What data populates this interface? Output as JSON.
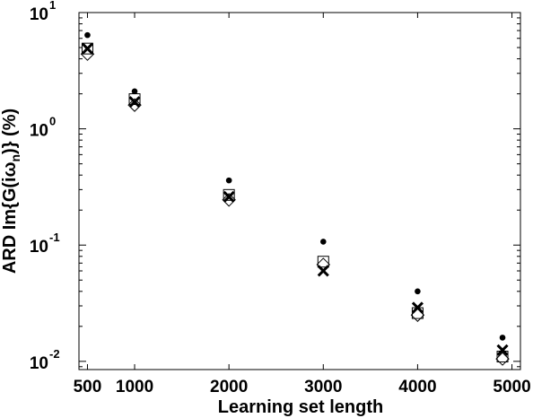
{
  "chart_data": {
    "type": "scatter",
    "xlabel": "Learning set length",
    "ylabel": {
      "prefix": "ARD Im{G(iω",
      "subscript": "n",
      "suffix": ")} (%)"
    },
    "y_scale": "log",
    "xlim": [
      410,
      5090
    ],
    "ylim": [
      0.0085,
      10
    ],
    "x_ticks": [
      500,
      1000,
      2000,
      3000,
      4000,
      5000
    ],
    "x_tick_labels": [
      "500",
      "1000",
      "2000",
      "3000",
      "4000",
      "5000"
    ],
    "y_ticks": [
      0.01,
      0.1,
      1,
      10
    ],
    "y_tick_labels": [
      {
        "base": "10",
        "exp": "-2"
      },
      {
        "base": "10",
        "exp": "-1"
      },
      {
        "base": "10",
        "exp": "0"
      },
      {
        "base": "10",
        "exp": "1"
      }
    ],
    "grid": false,
    "series": [
      {
        "marker": "dot",
        "x": [
          500,
          1000,
          2000,
          3000,
          4000,
          4900
        ],
        "y": [
          6.4,
          2.1,
          0.36,
          0.107,
          0.04,
          0.016
        ]
      },
      {
        "marker": "square",
        "x": [
          500,
          1000,
          2000,
          3000,
          4000,
          4900
        ],
        "y": [
          4.9,
          1.8,
          0.27,
          0.072,
          0.026,
          0.011
        ]
      },
      {
        "marker": "cross",
        "x": [
          500,
          1000,
          2000,
          3000,
          4000,
          4900
        ],
        "y": [
          4.9,
          1.7,
          0.26,
          0.06,
          0.029,
          0.0125
        ]
      },
      {
        "marker": "diamond",
        "x": [
          500,
          1000,
          2000,
          3000,
          4000,
          4900
        ],
        "y": [
          4.4,
          1.6,
          0.245,
          0.068,
          0.025,
          0.0105
        ]
      }
    ]
  }
}
